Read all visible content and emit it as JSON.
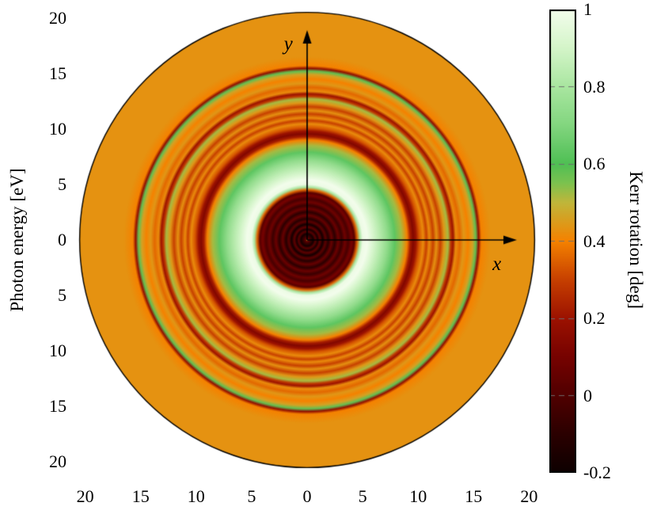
{
  "chart_data": {
    "type": "heatmap",
    "title": "",
    "xlabel": "",
    "ylabel": "Photon energy [eV]",
    "colorbar_label": "Kerr rotation [deg]",
    "geometry": "polar disk, radially symmetric rings",
    "disk_radius": 20.5,
    "x_tick_values": [
      -20,
      -15,
      -10,
      -5,
      0,
      5,
      10,
      15,
      20
    ],
    "x_tick_labels": [
      "20",
      "15",
      "10",
      "5",
      "0",
      "5",
      "10",
      "15",
      "20"
    ],
    "y_tick_values": [
      20,
      15,
      10,
      5,
      0,
      -5,
      -10,
      -15,
      -20
    ],
    "y_tick_labels": [
      "20",
      "15",
      "10",
      "5",
      "0",
      "5",
      "10",
      "15",
      "20"
    ],
    "annotations": {
      "x_label": "x",
      "y_label": "y",
      "x_arrow_end": 18.9,
      "y_arrow_end": 18.9,
      "x_label_pos": [
        17.1,
        -2.2
      ],
      "y_label_pos": [
        -1.7,
        17.6
      ]
    },
    "colorbar": {
      "min": -0.2,
      "max": 1,
      "tick_values": [
        1,
        0.8,
        0.6,
        0.4,
        0.2,
        0,
        -0.2
      ],
      "tick_labels": [
        "1",
        "0.8",
        "0.6",
        "0.4",
        "0.2",
        "0",
        "-0.2"
      ]
    },
    "colormap_stops": [
      {
        "v": -0.2,
        "c": "#0d0000"
      },
      {
        "v": -0.1,
        "c": "#2b0000"
      },
      {
        "v": 0.0,
        "c": "#500000"
      },
      {
        "v": 0.1,
        "c": "#770200"
      },
      {
        "v": 0.2,
        "c": "#9c1200"
      },
      {
        "v": 0.3,
        "c": "#c74000"
      },
      {
        "v": 0.4,
        "c": "#f58200"
      },
      {
        "v": 0.5,
        "c": "#c0b63a"
      },
      {
        "v": 0.55,
        "c": "#7cc24f"
      },
      {
        "v": 0.6,
        "c": "#4fbf54"
      },
      {
        "v": 0.7,
        "c": "#82d67f"
      },
      {
        "v": 0.8,
        "c": "#a9e6a0"
      },
      {
        "v": 0.9,
        "c": "#d4f5c9"
      },
      {
        "v": 1.0,
        "c": "#f3fdec"
      }
    ],
    "radial_profile": [
      [
        0.0,
        0.5
      ],
      [
        0.12,
        0.05
      ],
      [
        0.3,
        -0.05
      ],
      [
        0.55,
        -0.18
      ],
      [
        0.75,
        0.02
      ],
      [
        0.95,
        -0.16
      ],
      [
        1.15,
        0.04
      ],
      [
        1.4,
        -0.18
      ],
      [
        1.65,
        0.03
      ],
      [
        1.9,
        -0.12
      ],
      [
        2.2,
        0.06
      ],
      [
        2.5,
        -0.1
      ],
      [
        2.8,
        0.07
      ],
      [
        3.1,
        -0.06
      ],
      [
        3.4,
        0.08
      ],
      [
        3.7,
        -0.02
      ],
      [
        4.0,
        0.1
      ],
      [
        4.25,
        0.02
      ],
      [
        4.5,
        0.35
      ],
      [
        4.75,
        0.8
      ],
      [
        5.0,
        0.98
      ],
      [
        5.4,
        1.0
      ],
      [
        5.9,
        0.92
      ],
      [
        6.5,
        0.84
      ],
      [
        7.2,
        0.74
      ],
      [
        7.9,
        0.63
      ],
      [
        8.5,
        0.52
      ],
      [
        9.0,
        0.4
      ],
      [
        9.3,
        0.22
      ],
      [
        9.55,
        0.13
      ],
      [
        9.8,
        0.2
      ],
      [
        10.1,
        0.33
      ],
      [
        10.45,
        0.42
      ],
      [
        10.75,
        0.3
      ],
      [
        11.0,
        0.42
      ],
      [
        11.35,
        0.3
      ],
      [
        11.65,
        0.43
      ],
      [
        12.0,
        0.3
      ],
      [
        12.35,
        0.44
      ],
      [
        12.7,
        0.52
      ],
      [
        12.95,
        0.28
      ],
      [
        13.15,
        0.2
      ],
      [
        13.4,
        0.42
      ],
      [
        13.75,
        0.36
      ],
      [
        14.1,
        0.44
      ],
      [
        14.5,
        0.4
      ],
      [
        14.9,
        0.46
      ],
      [
        15.2,
        0.58
      ],
      [
        15.45,
        0.17
      ],
      [
        15.7,
        0.4
      ],
      [
        16.5,
        0.43
      ],
      [
        20.5,
        0.43
      ]
    ]
  }
}
